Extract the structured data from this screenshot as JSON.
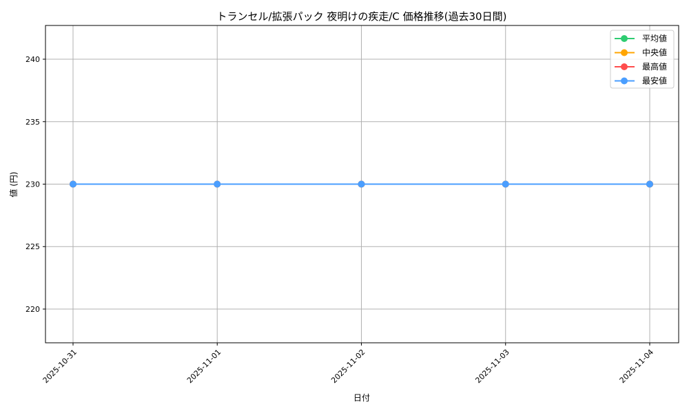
{
  "chart_data": {
    "type": "line",
    "title": "トランセル/拡張パック 夜明けの疾走/C 価格推移(過去30日間)",
    "xlabel": "日付",
    "ylabel": "値 (円)",
    "x": [
      "2025-10-31",
      "2025-11-01",
      "2025-11-02",
      "2025-11-03",
      "2025-11-04"
    ],
    "yticks": [
      220,
      225,
      230,
      235,
      240
    ],
    "ylim": [
      217.3,
      242.7
    ],
    "grid": true,
    "legend_position": "top-right",
    "series": [
      {
        "name": "平均値",
        "color": "#2ecc71",
        "values": [
          230,
          230,
          230,
          230,
          230
        ]
      },
      {
        "name": "中央値",
        "color": "#ffa500",
        "values": [
          230,
          230,
          230,
          230,
          230
        ]
      },
      {
        "name": "最高値",
        "color": "#ff4d4d",
        "values": [
          230,
          230,
          230,
          230,
          230
        ]
      },
      {
        "name": "最安値",
        "color": "#4a9eff",
        "values": [
          230,
          230,
          230,
          230,
          230
        ]
      }
    ]
  }
}
